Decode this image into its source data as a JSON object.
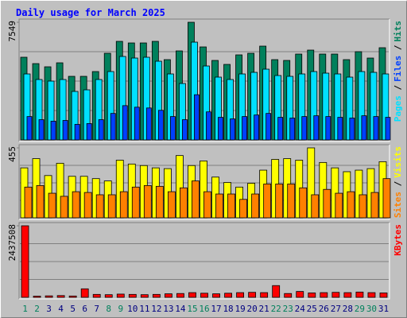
{
  "title": "Daily usage for March 2025",
  "legend_separator": "/",
  "chart_data": [
    {
      "type": "bar",
      "ylim": [
        0,
        7549
      ],
      "yticks": [
        7549
      ],
      "series": [
        {
          "name": "Hits",
          "color": "#00805c",
          "values": [
            5305,
            4896,
            4692,
            4947,
            4080,
            4080,
            4386,
            5559,
            6324,
            6222,
            6222,
            6324,
            5151,
            5712,
            7549,
            5967,
            5100,
            4845,
            5457,
            5559,
            6018,
            5151,
            5100,
            5508,
            5763,
            5508,
            5508,
            5151,
            5661,
            5253,
            5916
          ]
        },
        {
          "name": "Pages",
          "color": "#00e0ff",
          "values": [
            4233,
            3876,
            3774,
            3876,
            3111,
            3213,
            3876,
            4386,
            5355,
            5253,
            5304,
            5049,
            4233,
            3621,
            6273,
            4743,
            4029,
            3876,
            4233,
            4335,
            4539,
            4131,
            4080,
            4233,
            4386,
            4284,
            4233,
            4029,
            4386,
            4335,
            4233
          ]
        },
        {
          "name": "Files",
          "color": "#0040ff",
          "values": [
            1500,
            1300,
            1200,
            1250,
            1000,
            1050,
            1300,
            1700,
            2200,
            2100,
            2050,
            1900,
            1500,
            1300,
            2900,
            1800,
            1450,
            1350,
            1500,
            1600,
            1700,
            1450,
            1400,
            1500,
            1550,
            1500,
            1450,
            1400,
            1550,
            1500,
            1450
          ]
        }
      ]
    },
    {
      "type": "bar",
      "ylim": [
        0,
        455
      ],
      "yticks": [
        455
      ],
      "series": [
        {
          "name": "Visits",
          "color": "#ffff00",
          "values": [
            325,
            385,
            275,
            355,
            270,
            270,
            255,
            240,
            375,
            350,
            340,
            325,
            320,
            405,
            340,
            370,
            265,
            230,
            200,
            225,
            310,
            380,
            385,
            375,
            455,
            360,
            325,
            300,
            310,
            320,
            365
          ]
        },
        {
          "name": "Sites",
          "color": "#ff8000",
          "values": [
            200,
            210,
            160,
            140,
            170,
            165,
            150,
            150,
            170,
            200,
            210,
            205,
            170,
            195,
            240,
            170,
            155,
            155,
            120,
            155,
            220,
            220,
            220,
            195,
            150,
            185,
            160,
            170,
            150,
            165,
            255
          ]
        }
      ]
    },
    {
      "type": "bar",
      "ylim": [
        0,
        2437508
      ],
      "yticks": [
        2437508
      ],
      "categories": [
        "1",
        "2",
        "3",
        "4",
        "5",
        "6",
        "7",
        "8",
        "9",
        "10",
        "11",
        "12",
        "13",
        "14",
        "15",
        "16",
        "17",
        "18",
        "19",
        "20",
        "21",
        "22",
        "23",
        "24",
        "25",
        "26",
        "27",
        "28",
        "29",
        "30",
        "31"
      ],
      "category_colors": [
        "#00805c",
        "#00805c",
        "#000080",
        "#000080",
        "#000080",
        "#000080",
        "#000080",
        "#00805c",
        "#00805c",
        "#000080",
        "#000080",
        "#000080",
        "#000080",
        "#000080",
        "#00805c",
        "#00805c",
        "#000080",
        "#000080",
        "#000080",
        "#000080",
        "#000080",
        "#00805c",
        "#00805c",
        "#000080",
        "#000080",
        "#000080",
        "#000080",
        "#000080",
        "#00805c",
        "#00805c",
        "#000080"
      ],
      "series": [
        {
          "name": "KBytes",
          "color": "#ff0000",
          "values": [
            2437508,
            40000,
            50000,
            60000,
            45000,
            290000,
            100000,
            90000,
            110000,
            100000,
            90000,
            100000,
            120000,
            130000,
            160000,
            140000,
            120000,
            140000,
            160000,
            170000,
            160000,
            400000,
            130000,
            200000,
            150000,
            160000,
            170000,
            160000,
            180000,
            160000,
            150000
          ]
        }
      ]
    }
  ]
}
